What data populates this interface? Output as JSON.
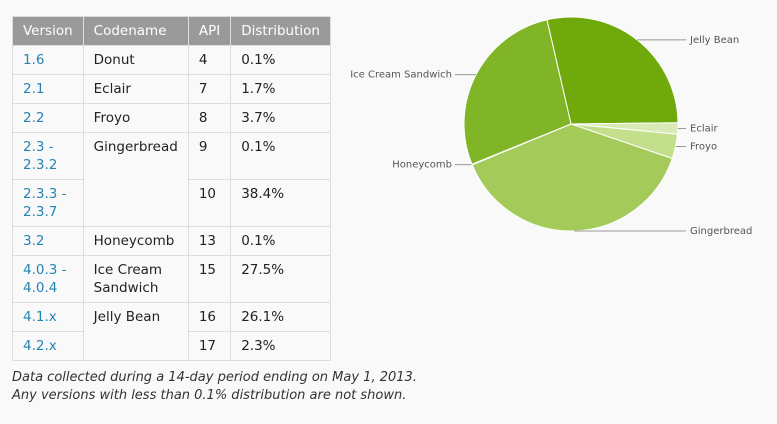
{
  "table": {
    "header": [
      "Version",
      "Codename",
      "API",
      "Distribution"
    ],
    "rows": [
      [
        "1.6",
        "Donut",
        "4",
        "0.1%"
      ],
      [
        "2.1",
        "Eclair",
        "7",
        "1.7%"
      ],
      [
        "2.2",
        "Froyo",
        "8",
        "3.7%"
      ],
      [
        "2.3 - 2.3.2",
        "Gingerbread",
        "9",
        "0.1%"
      ],
      [
        "2.3.3 - 2.3.7",
        "10",
        "38.4%"
      ],
      [
        "3.2",
        "Honeycomb",
        "13",
        "0.1%"
      ],
      [
        "4.0.3 - 4.0.4",
        "Ice Cream Sandwich",
        "15",
        "27.5%"
      ],
      [
        "4.1.x",
        "Jelly Bean",
        "16",
        "26.1%"
      ],
      [
        "4.2.x",
        "17",
        "2.3%"
      ]
    ]
  },
  "notes": [
    "Data collected during a 14-day period ending on May 1, 2013.",
    "Any versions with less than 0.1% distribution are not shown."
  ],
  "chart_data": {
    "type": "pie",
    "categories": [
      "Jelly Bean",
      "Eclair",
      "Froyo",
      "Gingerbread",
      "Honeycomb",
      "Ice Cream Sandwich"
    ],
    "values": [
      28.4,
      1.7,
      3.7,
      38.5,
      0.1,
      27.5
    ],
    "colors": [
      "#6fa90c",
      "#d9eab6",
      "#c3df8c",
      "#a4cb5a",
      "#8fbd3c",
      "#80b528"
    ]
  }
}
